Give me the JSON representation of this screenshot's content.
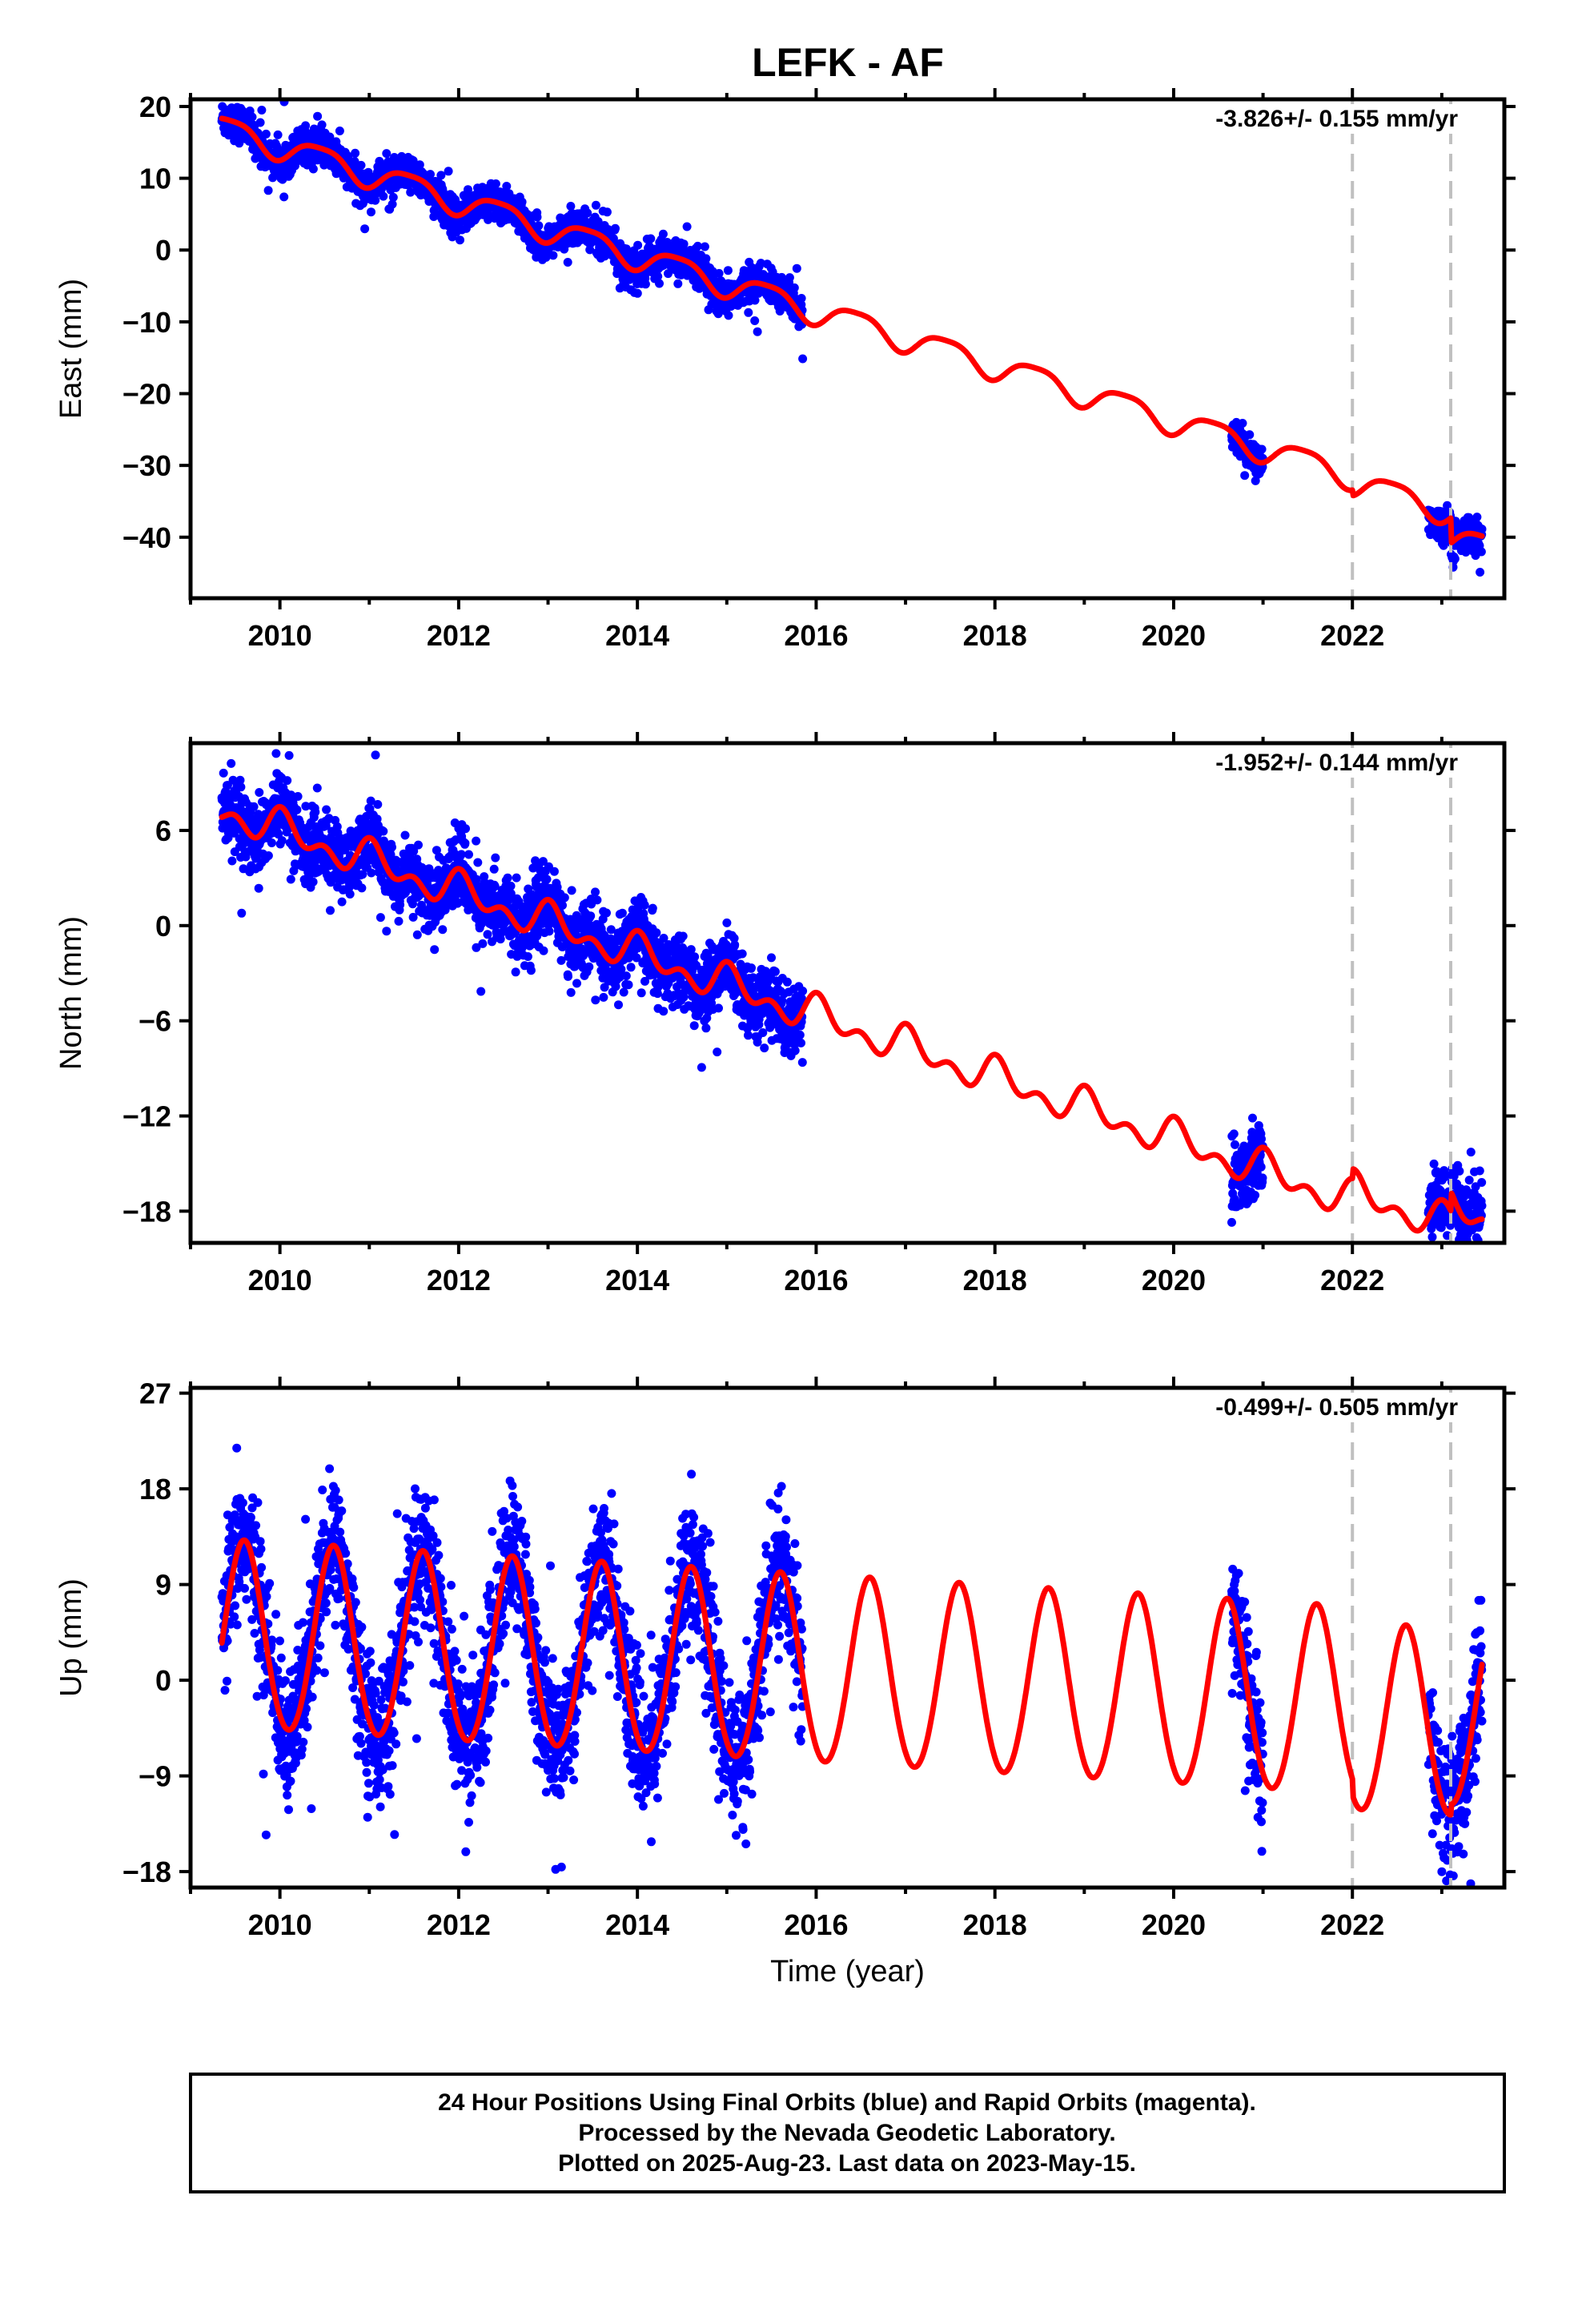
{
  "title": "LEFK - AF",
  "footer": {
    "lines": [
      "24 Hour Positions Using Final Orbits (blue) and Rapid Orbits (magenta).",
      "Processed by the Nevada Geodetic Laboratory.",
      "Plotted on 2025-Aug-23. Last data on 2023-May-15."
    ]
  },
  "colors": {
    "final_orbit_points": "#0000ff",
    "model_fit": "#ff0000",
    "break_lines": "#c0c0c0",
    "axes": "#000000"
  },
  "chart_data": [
    {
      "type": "scatter",
      "component": "east",
      "ylabel": "East (mm)",
      "xlabel": "",
      "xlim": [
        2009.0,
        2023.7
      ],
      "ylim": [
        -48.5,
        21
      ],
      "xticks": [
        2010,
        2012,
        2014,
        2016,
        2018,
        2020,
        2022
      ],
      "xtick_labels": [
        "2010",
        "2012",
        "2014",
        "2016",
        "2018",
        "2020",
        "2022"
      ],
      "yticks": [
        20,
        10,
        0,
        -10,
        -20,
        -30,
        -40
      ],
      "ytick_labels": [
        "20",
        "10",
        "0",
        "−10",
        "−20",
        "−30",
        "−40"
      ],
      "rate_label": "-3.826+/- 0.155 mm/yr",
      "break_dates": [
        2022.0,
        2023.1
      ],
      "data_segments": [
        [
          2009.35,
          2015.85
        ],
        [
          2020.65,
          2021.0
        ],
        [
          2022.85,
          2023.45
        ]
      ],
      "model": {
        "name": "model fit",
        "x0": 2009.35,
        "intercept": 17.0,
        "velocity": -3.826,
        "annual_amplitude": 1.8,
        "annual_peak": 0.45,
        "semiannual_amplitude": 0.4,
        "semiannual_peak": 0.2,
        "offsets": [
          {
            "date": 2022.0,
            "size": -0.8
          },
          {
            "date": 2023.1,
            "size": -3.5
          }
        ]
      },
      "scatter_sigma": 1.2
    },
    {
      "type": "scatter",
      "component": "north",
      "ylabel": "North (mm)",
      "xlabel": "",
      "xlim": [
        2009.0,
        2023.7
      ],
      "ylim": [
        -20,
        11.5
      ],
      "xticks": [
        2010,
        2012,
        2014,
        2016,
        2018,
        2020,
        2022
      ],
      "xtick_labels": [
        "2010",
        "2012",
        "2014",
        "2016",
        "2018",
        "2020",
        "2022"
      ],
      "yticks": [
        6,
        0,
        -6,
        -12,
        -18
      ],
      "ytick_labels": [
        "6",
        "0",
        "−6",
        "−12",
        "−18"
      ],
      "rate_label": "-1.952+/- 0.144 mm/yr",
      "break_dates": [
        2022.0,
        2023.1
      ],
      "data_segments": [
        [
          2009.35,
          2015.85
        ],
        [
          2020.65,
          2021.0
        ],
        [
          2022.85,
          2023.45
        ]
      ],
      "model": {
        "name": "model fit",
        "x0": 2009.35,
        "intercept": 7.3,
        "velocity": -1.952,
        "annual_amplitude": 0.8,
        "annual_peak": 0.05,
        "semiannual_amplitude": 0.7,
        "semiannual_peak": 0.0,
        "offsets": [
          {
            "date": 2022.0,
            "size": 0.6
          },
          {
            "date": 2023.1,
            "size": 1.2
          }
        ]
      },
      "scatter_sigma": 1.1
    },
    {
      "type": "scatter",
      "component": "up",
      "ylabel": "Up (mm)",
      "xlabel": "Time (year)",
      "xlim": [
        2009.0,
        2023.7
      ],
      "ylim": [
        -19.5,
        27.5
      ],
      "xticks": [
        2010,
        2012,
        2014,
        2016,
        2018,
        2020,
        2022
      ],
      "xtick_labels": [
        "2010",
        "2012",
        "2014",
        "2016",
        "2018",
        "2020",
        "2022"
      ],
      "yticks": [
        27,
        18,
        9,
        0,
        -9,
        -18
      ],
      "ytick_labels": [
        "27",
        "18",
        "9",
        "0",
        "−9",
        "−18"
      ],
      "rate_label": "-0.499+/- 0.505 mm/yr",
      "break_dates": [
        2022.0,
        2023.1
      ],
      "data_segments": [
        [
          2009.35,
          2015.85
        ],
        [
          2020.65,
          2021.0
        ],
        [
          2022.85,
          2023.45
        ]
      ],
      "model": {
        "name": "model fit",
        "x0": 2009.35,
        "intercept": 4.0,
        "velocity": -0.499,
        "annual_amplitude": 8.8,
        "annual_peak": 0.6,
        "semiannual_amplitude": 0.5,
        "semiannual_peak": 0.1,
        "offsets": [
          {
            "date": 2022.0,
            "size": -1.5
          },
          {
            "date": 2023.1,
            "size": 1.0
          }
        ]
      },
      "scatter_sigma": 3.2
    }
  ]
}
